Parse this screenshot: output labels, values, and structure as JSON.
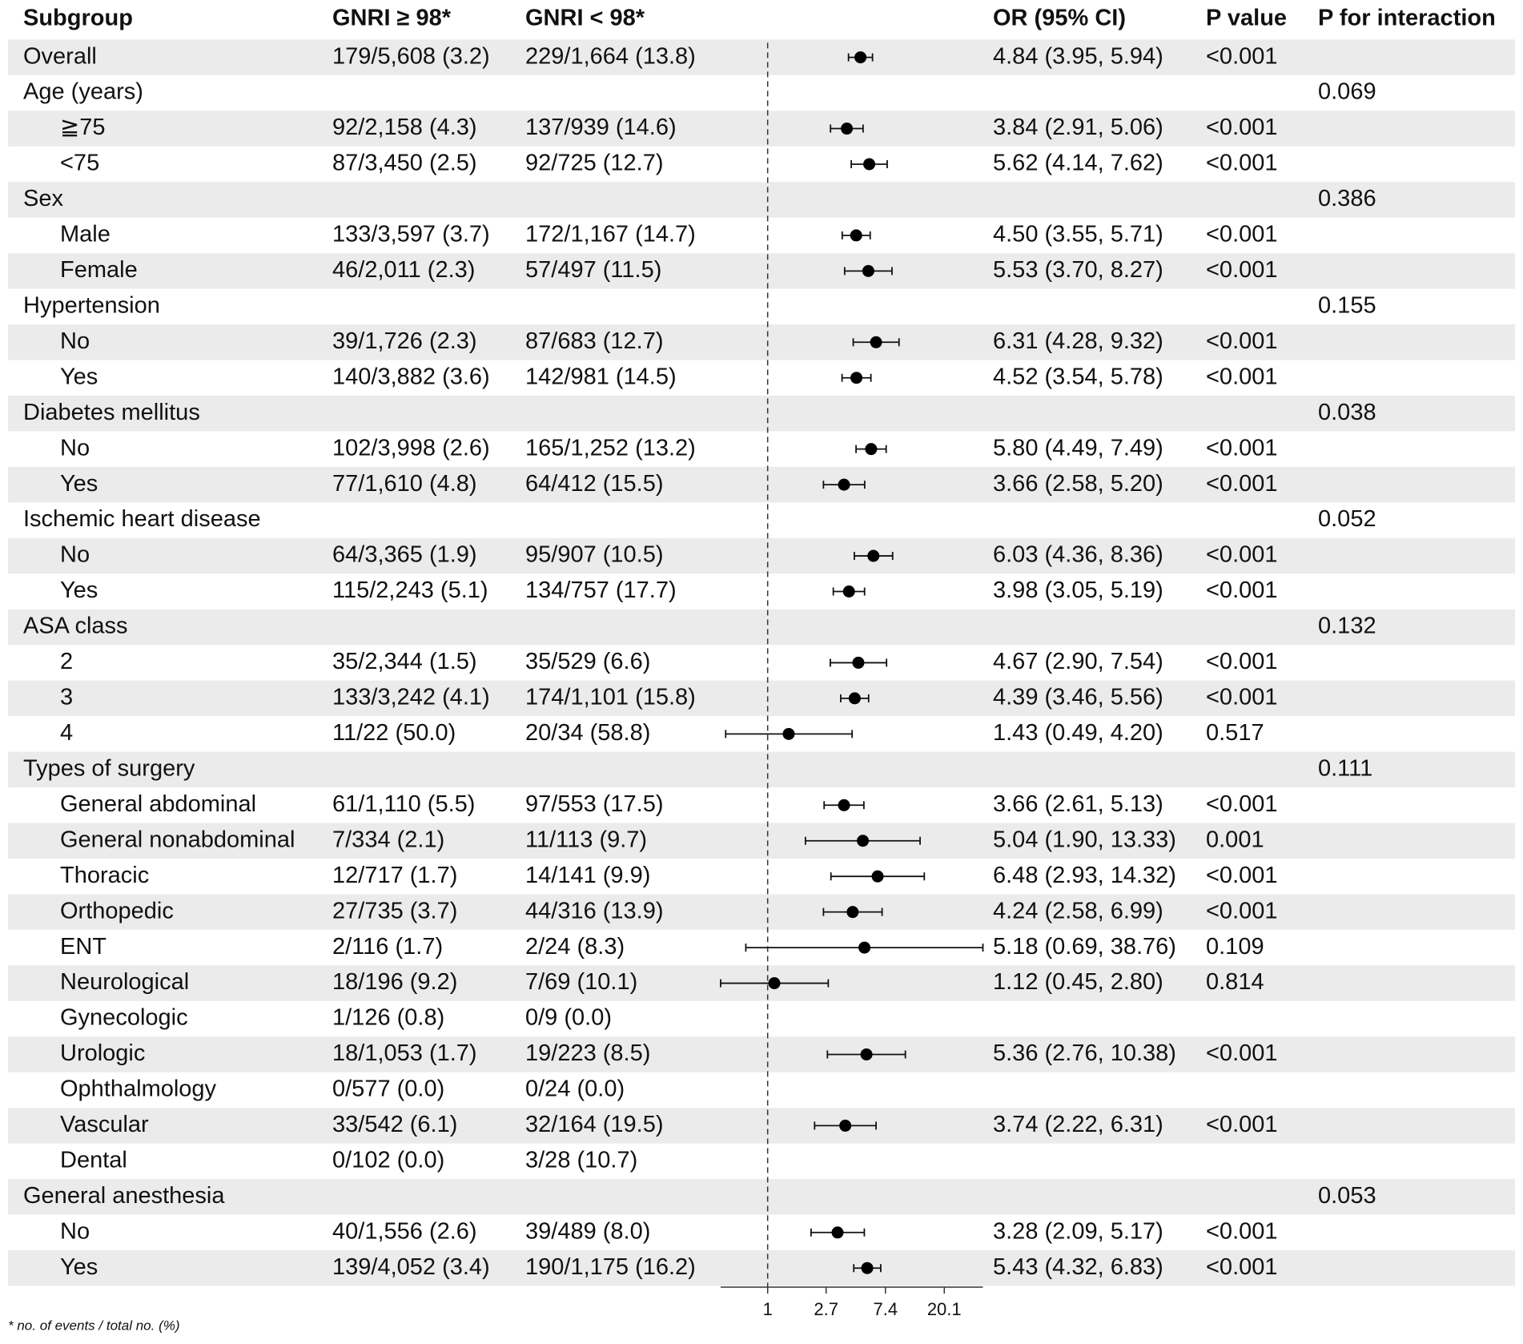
{
  "chart_data": {
    "type": "forest",
    "columns": [
      "Subgroup",
      "GNRI ≥ 98*",
      "GNRI < 98*",
      "OR (95% CI)",
      "P value",
      "P for interaction"
    ],
    "footnote": "* no. of events / total no. (%)",
    "xscale": "log",
    "xlim": [
      0.45,
      38.76
    ],
    "xticks": [
      1,
      2.7,
      7.4,
      20.1
    ],
    "reference": 1,
    "groups": [
      {
        "name": "Overall",
        "high": "179/5,608 (3.2)",
        "low": "229/1,664 (13.8)",
        "or": 4.84,
        "lower": 3.95,
        "upper": 5.94,
        "ci_label": "4.84 (3.95, 5.94)",
        "p": "<0.001"
      },
      {
        "name": "Age (years)",
        "p_interaction": "0.069",
        "rows": [
          {
            "name": "≧75",
            "high": "92/2,158 (4.3)",
            "low": "137/939 (14.6)",
            "or": 3.84,
            "lower": 2.91,
            "upper": 5.06,
            "ci_label": "3.84 (2.91, 5.06)",
            "p": "<0.001"
          },
          {
            "name": "<75",
            "high": "87/3,450 (2.5)",
            "low": "92/725 (12.7)",
            "or": 5.62,
            "lower": 4.14,
            "upper": 7.62,
            "ci_label": "5.62 (4.14, 7.62)",
            "p": "<0.001"
          }
        ]
      },
      {
        "name": "Sex",
        "p_interaction": "0.386",
        "rows": [
          {
            "name": "Male",
            "high": "133/3,597 (3.7)",
            "low": "172/1,167 (14.7)",
            "or": 4.5,
            "lower": 3.55,
            "upper": 5.71,
            "ci_label": "4.50 (3.55, 5.71)",
            "p": "<0.001"
          },
          {
            "name": "Female",
            "high": "46/2,011 (2.3)",
            "low": "57/497 (11.5)",
            "or": 5.53,
            "lower": 3.7,
            "upper": 8.27,
            "ci_label": "5.53 (3.70, 8.27)",
            "p": "<0.001"
          }
        ]
      },
      {
        "name": "Hypertension",
        "p_interaction": "0.155",
        "rows": [
          {
            "name": "No",
            "high": "39/1,726 (2.3)",
            "low": "87/683 (12.7)",
            "or": 6.31,
            "lower": 4.28,
            "upper": 9.32,
            "ci_label": "6.31 (4.28, 9.32)",
            "p": "<0.001"
          },
          {
            "name": "Yes",
            "high": "140/3,882 (3.6)",
            "low": "142/981 (14.5)",
            "or": 4.52,
            "lower": 3.54,
            "upper": 5.78,
            "ci_label": "4.52 (3.54, 5.78)",
            "p": "<0.001"
          }
        ]
      },
      {
        "name": "Diabetes mellitus",
        "p_interaction": "0.038",
        "rows": [
          {
            "name": "No",
            "high": "102/3,998 (2.6)",
            "low": "165/1,252 (13.2)",
            "or": 5.8,
            "lower": 4.49,
            "upper": 7.49,
            "ci_label": "5.80 (4.49, 7.49)",
            "p": "<0.001"
          },
          {
            "name": "Yes",
            "high": "77/1,610 (4.8)",
            "low": "64/412 (15.5)",
            "or": 3.66,
            "lower": 2.58,
            "upper": 5.2,
            "ci_label": "3.66 (2.58, 5.20)",
            "p": "<0.001"
          }
        ]
      },
      {
        "name": "Ischemic heart disease",
        "p_interaction": "0.052",
        "rows": [
          {
            "name": "No",
            "high": "64/3,365 (1.9)",
            "low": "95/907 (10.5)",
            "or": 6.03,
            "lower": 4.36,
            "upper": 8.36,
            "ci_label": "6.03 (4.36, 8.36)",
            "p": "<0.001"
          },
          {
            "name": "Yes",
            "high": "115/2,243 (5.1)",
            "low": "134/757 (17.7)",
            "or": 3.98,
            "lower": 3.05,
            "upper": 5.19,
            "ci_label": "3.98 (3.05, 5.19)",
            "p": "<0.001"
          }
        ]
      },
      {
        "name": "ASA class",
        "p_interaction": "0.132",
        "rows": [
          {
            "name": "2",
            "high": "35/2,344 (1.5)",
            "low": "35/529 (6.6)",
            "or": 4.67,
            "lower": 2.9,
            "upper": 7.54,
            "ci_label": "4.67 (2.90, 7.54)",
            "p": "<0.001"
          },
          {
            "name": "3",
            "high": "133/3,242 (4.1)",
            "low": "174/1,101 (15.8)",
            "or": 4.39,
            "lower": 3.46,
            "upper": 5.56,
            "ci_label": "4.39 (3.46, 5.56)",
            "p": "<0.001"
          },
          {
            "name": "4",
            "high": "11/22 (50.0)",
            "low": "20/34 (58.8)",
            "or": 1.43,
            "lower": 0.49,
            "upper": 4.2,
            "ci_label": "1.43 (0.49, 4.20)",
            "p": "0.517"
          }
        ]
      },
      {
        "name": "Types of surgery",
        "p_interaction": "0.111",
        "rows": [
          {
            "name": "General abdominal",
            "high": "61/1,110 (5.5)",
            "low": "97/553 (17.5)",
            "or": 3.66,
            "lower": 2.61,
            "upper": 5.13,
            "ci_label": "3.66 (2.61, 5.13)",
            "p": "<0.001"
          },
          {
            "name": "General nonabdominal",
            "high": "7/334 (2.1)",
            "low": "11/113 (9.7)",
            "or": 5.04,
            "lower": 1.9,
            "upper": 13.33,
            "ci_label": "5.04 (1.90, 13.33)",
            "p": "0.001"
          },
          {
            "name": "Thoracic",
            "high": "12/717 (1.7)",
            "low": "14/141 (9.9)",
            "or": 6.48,
            "lower": 2.93,
            "upper": 14.32,
            "ci_label": "6.48 (2.93, 14.32)",
            "p": "<0.001"
          },
          {
            "name": "Orthopedic",
            "high": "27/735 (3.7)",
            "low": "44/316 (13.9)",
            "or": 4.24,
            "lower": 2.58,
            "upper": 6.99,
            "ci_label": "4.24 (2.58, 6.99)",
            "p": "<0.001"
          },
          {
            "name": "ENT",
            "high": "2/116 (1.7)",
            "low": "2/24 (8.3)",
            "or": 5.18,
            "lower": 0.69,
            "upper": 38.76,
            "ci_label": "5.18 (0.69, 38.76)",
            "p": "0.109"
          },
          {
            "name": "Neurological",
            "high": "18/196 (9.2)",
            "low": "7/69 (10.1)",
            "or": 1.12,
            "lower": 0.45,
            "upper": 2.8,
            "ci_label": "1.12 (0.45, 2.80)",
            "p": "0.814"
          },
          {
            "name": "Gynecologic",
            "high": "1/126 (0.8)",
            "low": "0/9 (0.0)"
          },
          {
            "name": "Urologic",
            "high": "18/1,053 (1.7)",
            "low": "19/223 (8.5)",
            "or": 5.36,
            "lower": 2.76,
            "upper": 10.38,
            "ci_label": "5.36 (2.76, 10.38)",
            "p": "<0.001"
          },
          {
            "name": "Ophthalmology",
            "high": "0/577 (0.0)",
            "low": "0/24 (0.0)"
          },
          {
            "name": "Vascular",
            "high": "33/542 (6.1)",
            "low": "32/164 (19.5)",
            "or": 3.74,
            "lower": 2.22,
            "upper": 6.31,
            "ci_label": "3.74 (2.22, 6.31)",
            "p": "<0.001"
          },
          {
            "name": "Dental",
            "high": "0/102 (0.0)",
            "low": "3/28 (10.7)"
          }
        ]
      },
      {
        "name": "General anesthesia",
        "p_interaction": "0.053",
        "rows": [
          {
            "name": "No",
            "high": "40/1,556 (2.6)",
            "low": "39/489 (8.0)",
            "or": 3.28,
            "lower": 2.09,
            "upper": 5.17,
            "ci_label": "3.28 (2.09, 5.17)",
            "p": "<0.001"
          },
          {
            "name": "Yes",
            "high": "139/4,052 (3.4)",
            "low": "190/1,175 (16.2)",
            "or": 5.43,
            "lower": 4.32,
            "upper": 6.83,
            "ci_label": "5.43 (4.32, 6.83)",
            "p": "<0.001"
          }
        ]
      }
    ]
  }
}
